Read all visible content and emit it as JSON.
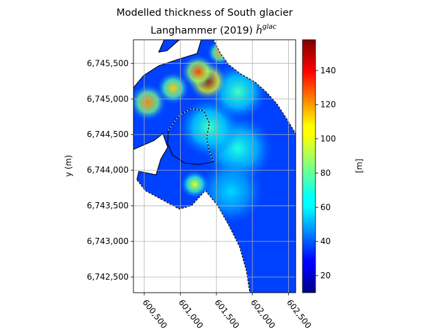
{
  "title": {
    "line1": "Modelled thickness of South glacier",
    "line2_prefix": "Langhammer (2019) ",
    "line2_symbol": "ĥ",
    "line2_sup": "glac"
  },
  "axes": {
    "ylabel": "y (m)",
    "xlabel": "",
    "xlim": [
      600350,
      602600
    ],
    "ylim": [
      6742280,
      6745830
    ],
    "x_ticks": [
      {
        "value": 600500,
        "label": "600,500"
      },
      {
        "value": 601000,
        "label": "601,000"
      },
      {
        "value": 601500,
        "label": "601,500"
      },
      {
        "value": 602000,
        "label": "602,000"
      },
      {
        "value": 602500,
        "label": "602,500"
      }
    ],
    "y_ticks": [
      {
        "value": 6742500,
        "label": "6,742,500"
      },
      {
        "value": 6743000,
        "label": "6,743,000"
      },
      {
        "value": 6743500,
        "label": "6,743,500"
      },
      {
        "value": 6744000,
        "label": "6,744,000"
      },
      {
        "value": 6744500,
        "label": "6,744,500"
      },
      {
        "value": 6745000,
        "label": "6,745,000"
      },
      {
        "value": 6745500,
        "label": "6,745,500"
      }
    ],
    "grid": true
  },
  "colorbar": {
    "label": "[m]",
    "colormap": "jet",
    "min": 10,
    "max": 158,
    "ticks": [
      {
        "value": 20,
        "label": "20"
      },
      {
        "value": 40,
        "label": "40"
      },
      {
        "value": 60,
        "label": "60"
      },
      {
        "value": 80,
        "label": "80"
      },
      {
        "value": 100,
        "label": "100"
      },
      {
        "value": 120,
        "label": "120"
      },
      {
        "value": 140,
        "label": "140"
      }
    ]
  },
  "map_data": {
    "outline_color": "#000000",
    "hotspots": [
      {
        "x": 601380,
        "y": 6745250,
        "thickness": 155,
        "spread": 170
      },
      {
        "x": 601250,
        "y": 6745380,
        "thickness": 130,
        "spread": 150
      },
      {
        "x": 600550,
        "y": 6744950,
        "thickness": 120,
        "spread": 160
      },
      {
        "x": 600900,
        "y": 6745150,
        "thickness": 110,
        "spread": 140
      },
      {
        "x": 601550,
        "y": 6745650,
        "thickness": 115,
        "spread": 110
      },
      {
        "x": 601200,
        "y": 6743800,
        "thickness": 100,
        "spread": 120
      },
      {
        "x": 601800,
        "y": 6745100,
        "thickness": 75,
        "spread": 250
      },
      {
        "x": 601800,
        "y": 6744300,
        "thickness": 70,
        "spread": 300
      },
      {
        "x": 601400,
        "y": 6744600,
        "thickness": 75,
        "spread": 260
      },
      {
        "x": 601700,
        "y": 6743700,
        "thickness": 60,
        "spread": 280
      }
    ]
  }
}
